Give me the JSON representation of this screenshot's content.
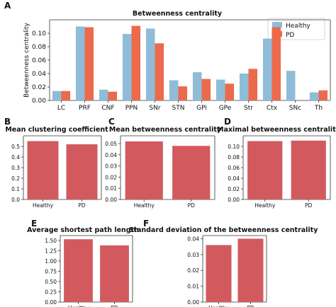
{
  "colors": {
    "healthy": "#8fbcd8",
    "pd": "#ec6a4c",
    "single": "#d25a5e",
    "axis": "#333333"
  },
  "panels": [
    {
      "letter": "A",
      "title": "Betweenness centrality",
      "legend": [
        "Healthy",
        "PD"
      ]
    },
    {
      "letter": "B",
      "title": "Mean clustering coefficient"
    },
    {
      "letter": "C",
      "title": "Mean betweenness centrality"
    },
    {
      "letter": "D",
      "title": "Maximal betweenness centrality"
    },
    {
      "letter": "E",
      "title": "Average shortest path length"
    },
    {
      "letter": "F",
      "title": "Standard deviation of the betweenness centrality"
    }
  ],
  "chart_data": [
    {
      "type": "bar",
      "title": "Betweenness centrality",
      "ylabel": "Betweenness centrality",
      "xlabel": "",
      "categories": [
        "LC",
        "PRF",
        "CNF",
        "PPN",
        "SNr",
        "STN",
        "GPi",
        "GPe",
        "Str",
        "Ctx",
        "SNc",
        "Th"
      ],
      "series": [
        {
          "name": "Healthy",
          "values": [
            0.014,
            0.11,
            0.016,
            0.099,
            0.107,
            0.03,
            0.042,
            0.031,
            0.04,
            0.092,
            0.044,
            0.012
          ]
        },
        {
          "name": "PD",
          "values": [
            0.014,
            0.109,
            0.013,
            0.111,
            0.085,
            0.021,
            0.032,
            0.025,
            0.047,
            0.109,
            0.0,
            0.015
          ]
        }
      ],
      "ylim": [
        0,
        0.12
      ],
      "yticks": [
        0.0,
        0.02,
        0.04,
        0.06,
        0.08,
        0.1
      ],
      "ytick_labels": [
        "0.00",
        "0.02",
        "0.04",
        "0.06",
        "0.08",
        "0.10"
      ],
      "legend_position": "top-right",
      "grid": false
    },
    {
      "type": "bar",
      "title": "Mean clustering coefficient",
      "categories": [
        "Healthy",
        "PD"
      ],
      "values": [
        0.55,
        0.52
      ],
      "ylim": [
        0,
        0.6
      ],
      "yticks": [
        0.0,
        0.1,
        0.2,
        0.3,
        0.4,
        0.5
      ],
      "ytick_labels": [
        "0.0",
        "0.1",
        "0.2",
        "0.3",
        "0.4",
        "0.5"
      ]
    },
    {
      "type": "bar",
      "title": "Mean betweenness centrality",
      "categories": [
        "Healthy",
        "PD"
      ],
      "values": [
        0.052,
        0.048
      ],
      "ylim": [
        0,
        0.057
      ],
      "yticks": [
        0.0,
        0.01,
        0.02,
        0.03,
        0.04,
        0.05
      ],
      "ytick_labels": [
        "0.00",
        "0.01",
        "0.02",
        "0.03",
        "0.04",
        "0.05"
      ]
    },
    {
      "type": "bar",
      "title": "Maximal betweenness centrality",
      "categories": [
        "Healthy",
        "PD"
      ],
      "values": [
        0.11,
        0.111
      ],
      "ylim": [
        0,
        0.12
      ],
      "yticks": [
        0.0,
        0.02,
        0.04,
        0.06,
        0.08,
        0.1
      ],
      "ytick_labels": [
        "0.00",
        "0.02",
        "0.04",
        "0.06",
        "0.08",
        "0.10"
      ]
    },
    {
      "type": "bar",
      "title": "Average shortest path length",
      "categories": [
        "Healthy",
        "PD"
      ],
      "values": [
        1.53,
        1.38
      ],
      "ylim": [
        0,
        1.62
      ],
      "yticks": [
        0.0,
        0.25,
        0.5,
        0.75,
        1.0,
        1.25,
        1.5
      ],
      "ytick_labels": [
        "0.00",
        "0.25",
        "0.50",
        "0.75",
        "1.00",
        "1.25",
        "1.50"
      ]
    },
    {
      "type": "bar",
      "title": "Standard deviation of the betweenness centrality",
      "categories": [
        "Healthy",
        "PD"
      ],
      "values": [
        0.036,
        0.04
      ],
      "ylim": [
        0,
        0.042
      ],
      "yticks": [
        0.0,
        0.01,
        0.02,
        0.03,
        0.04
      ],
      "ytick_labels": [
        "0.00",
        "0.01",
        "0.02",
        "0.03",
        "0.04"
      ]
    }
  ]
}
